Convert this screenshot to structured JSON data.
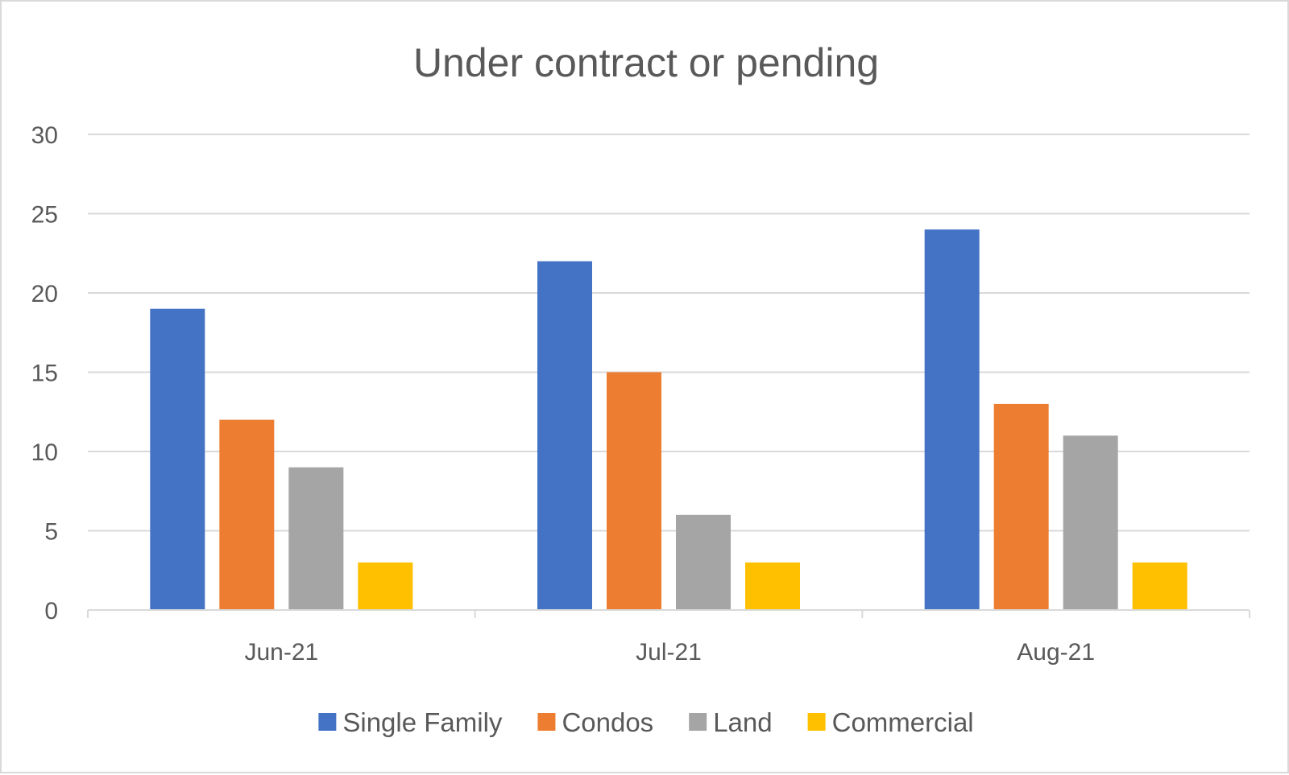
{
  "chart_data": {
    "type": "bar",
    "title": "Under contract or pending",
    "xlabel": "",
    "ylabel": "",
    "categories": [
      "Jun-21",
      "Jul-21",
      "Aug-21"
    ],
    "series": [
      {
        "name": "Single Family",
        "color": "#4472c4",
        "values": [
          19,
          22,
          24
        ]
      },
      {
        "name": "Condos",
        "color": "#ed7d31",
        "values": [
          12,
          15,
          13
        ]
      },
      {
        "name": "Land",
        "color": "#a5a5a5",
        "values": [
          9,
          6,
          11
        ]
      },
      {
        "name": "Commercial",
        "color": "#ffc000",
        "values": [
          3,
          3,
          3
        ]
      }
    ],
    "ylim": [
      0,
      30
    ],
    "yticks": [
      0,
      5,
      10,
      15,
      20,
      25,
      30
    ],
    "grid": true,
    "legend_position": "bottom"
  }
}
